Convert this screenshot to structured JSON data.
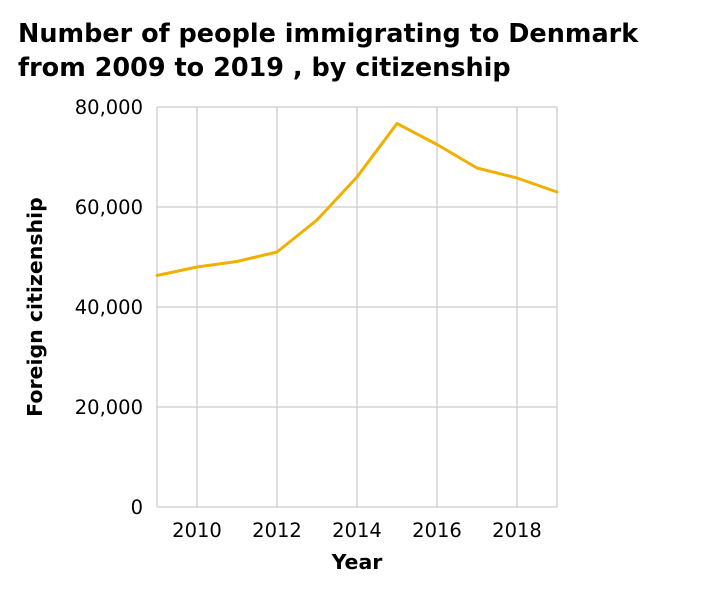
{
  "chart_data": {
    "type": "line",
    "title_lines": [
      "Number of people immigrating to Denmark",
      "from 2009 to 2019 , by citizenship"
    ],
    "xlabel": "Year",
    "ylabel": "Foreign citizenship",
    "xlim": [
      2009,
      2019
    ],
    "ylim": [
      0,
      80000
    ],
    "x_ticks": [
      2010,
      2012,
      2014,
      2016,
      2018
    ],
    "x_tick_labels": [
      "2010",
      "2012",
      "2014",
      "2016",
      "2018"
    ],
    "y_ticks": [
      0,
      20000,
      40000,
      60000,
      80000
    ],
    "y_tick_labels": [
      "0",
      "20,000",
      "40,000",
      "60,000",
      "80,000"
    ],
    "grid": true,
    "legend": "none",
    "series": [
      {
        "color": "#f0b000",
        "x": [
          2009,
          2010,
          2011,
          2012,
          2013,
          2014,
          2015,
          2016,
          2017,
          2018,
          2019
        ],
        "y": [
          46300,
          48000,
          49100,
          51000,
          57400,
          66000,
          76700,
          72500,
          67800,
          65800,
          63000
        ]
      }
    ]
  }
}
